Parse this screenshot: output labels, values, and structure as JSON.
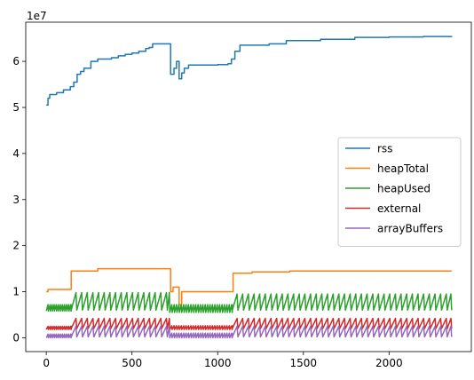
{
  "chart_data": {
    "type": "line",
    "title": "",
    "xlabel": "",
    "ylabel": "",
    "offset_text": "1e7",
    "xlim": [
      -120,
      2480
    ],
    "ylim": [
      -0.3,
      6.85
    ],
    "y_scale_note": "values in units of 1e7",
    "x_ticks": [
      0,
      500,
      1000,
      1500,
      2000
    ],
    "x_tick_labels": [
      "0",
      "500",
      "1000",
      "1500",
      "2000"
    ],
    "y_ticks": [
      0,
      1,
      2,
      3,
      4,
      5,
      6
    ],
    "y_tick_labels": [
      "0",
      "1",
      "2",
      "3",
      "4",
      "5",
      "6"
    ],
    "grid": false,
    "legend_position": "center-right",
    "series": [
      {
        "name": "rss",
        "color": "#1f77b4",
        "style": "step",
        "points": [
          [
            0,
            5.05
          ],
          [
            10,
            5.2
          ],
          [
            20,
            5.28
          ],
          [
            60,
            5.32
          ],
          [
            100,
            5.38
          ],
          [
            140,
            5.45
          ],
          [
            160,
            5.55
          ],
          [
            180,
            5.72
          ],
          [
            200,
            5.78
          ],
          [
            220,
            5.85
          ],
          [
            260,
            6.0
          ],
          [
            300,
            6.05
          ],
          [
            380,
            6.08
          ],
          [
            420,
            6.12
          ],
          [
            460,
            6.15
          ],
          [
            500,
            6.18
          ],
          [
            540,
            6.22
          ],
          [
            580,
            6.28
          ],
          [
            600,
            6.3
          ],
          [
            620,
            6.38
          ],
          [
            720,
            6.38
          ],
          [
            725,
            5.72
          ],
          [
            745,
            5.85
          ],
          [
            760,
            6.0
          ],
          [
            775,
            5.62
          ],
          [
            790,
            5.75
          ],
          [
            805,
            5.85
          ],
          [
            830,
            5.92
          ],
          [
            900,
            5.92
          ],
          [
            1000,
            5.93
          ],
          [
            1060,
            5.95
          ],
          [
            1080,
            6.05
          ],
          [
            1100,
            6.22
          ],
          [
            1130,
            6.35
          ],
          [
            1300,
            6.38
          ],
          [
            1400,
            6.45
          ],
          [
            1600,
            6.48
          ],
          [
            1800,
            6.52
          ],
          [
            2000,
            6.53
          ],
          [
            2200,
            6.54
          ],
          [
            2365,
            6.55
          ]
        ]
      },
      {
        "name": "heapTotal",
        "color": "#ff7f0e",
        "style": "step",
        "points": [
          [
            0,
            1.0
          ],
          [
            10,
            1.05
          ],
          [
            140,
            1.05
          ],
          [
            145,
            1.45
          ],
          [
            300,
            1.5
          ],
          [
            720,
            1.5
          ],
          [
            725,
            1.0
          ],
          [
            740,
            1.1
          ],
          [
            770,
            1.1
          ],
          [
            775,
            0.72
          ],
          [
            790,
            1.0
          ],
          [
            1085,
            1.0
          ],
          [
            1090,
            1.4
          ],
          [
            1200,
            1.43
          ],
          [
            1420,
            1.45
          ],
          [
            2365,
            1.45
          ]
        ]
      },
      {
        "name": "heapUsed",
        "color": "#2ca02c",
        "style": "sawtooth",
        "base": 0.62,
        "segments": [
          {
            "x_start": 0,
            "x_end": 145,
            "low": 0.58,
            "high": 0.72,
            "period": 12
          },
          {
            "x_start": 145,
            "x_end": 720,
            "low": 0.6,
            "high": 0.98,
            "period": 33
          },
          {
            "x_start": 720,
            "x_end": 1085,
            "low": 0.55,
            "high": 0.72,
            "period": 14
          },
          {
            "x_start": 1085,
            "x_end": 2365,
            "low": 0.6,
            "high": 0.95,
            "period": 33
          }
        ]
      },
      {
        "name": "external",
        "color": "#d62728",
        "style": "sawtooth",
        "segments": [
          {
            "x_start": 0,
            "x_end": 145,
            "low": 0.18,
            "high": 0.25,
            "period": 12
          },
          {
            "x_start": 145,
            "x_end": 720,
            "low": 0.2,
            "high": 0.42,
            "period": 33
          },
          {
            "x_start": 720,
            "x_end": 1085,
            "low": 0.18,
            "high": 0.26,
            "period": 14
          },
          {
            "x_start": 1085,
            "x_end": 2365,
            "low": 0.2,
            "high": 0.42,
            "period": 33
          }
        ]
      },
      {
        "name": "arrayBuffers",
        "color": "#9467bd",
        "style": "sawtooth",
        "segments": [
          {
            "x_start": 0,
            "x_end": 145,
            "low": 0.0,
            "high": 0.08,
            "period": 12
          },
          {
            "x_start": 145,
            "x_end": 720,
            "low": 0.02,
            "high": 0.25,
            "period": 33
          },
          {
            "x_start": 720,
            "x_end": 1085,
            "low": 0.0,
            "high": 0.1,
            "period": 14
          },
          {
            "x_start": 1085,
            "x_end": 2365,
            "low": 0.02,
            "high": 0.25,
            "period": 33
          }
        ]
      }
    ]
  }
}
